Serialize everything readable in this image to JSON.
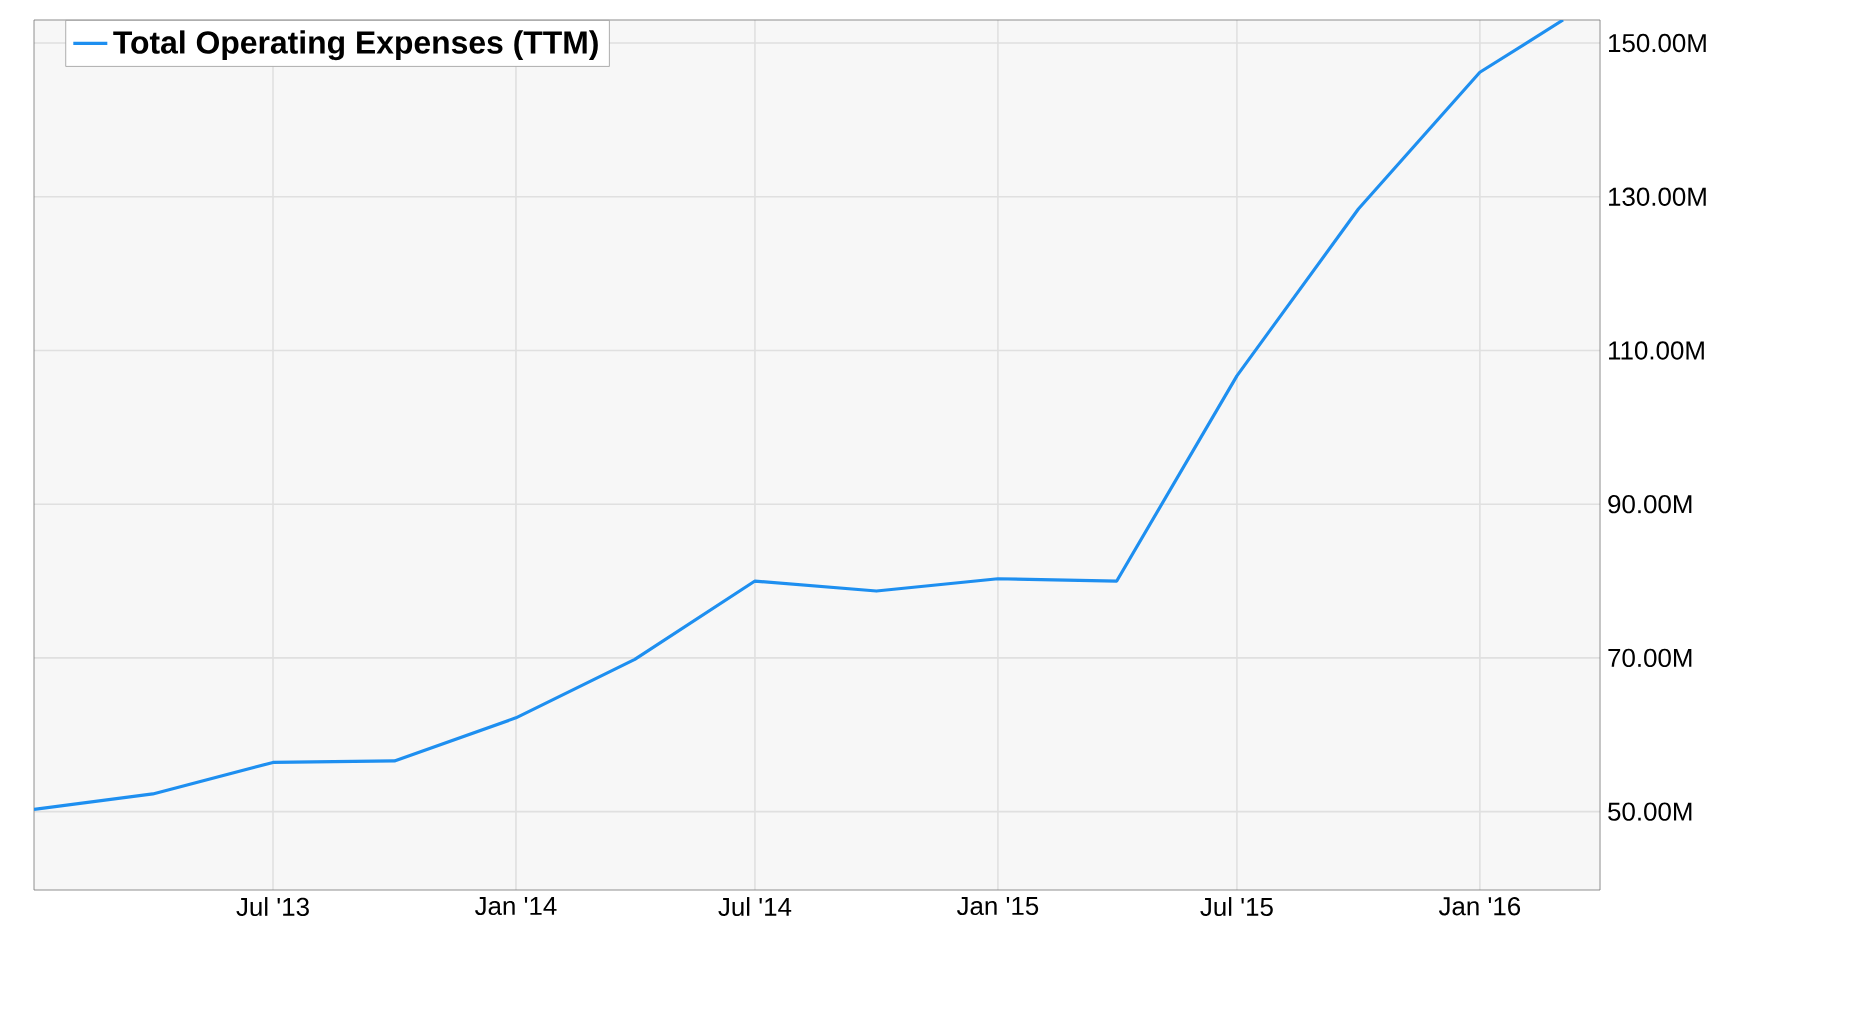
{
  "chart_data": {
    "type": "line",
    "x": [
      "2013-01-01",
      "2013-04-01",
      "2013-07-01",
      "2013-10-01",
      "2014-01-01",
      "2014-04-01",
      "2014-07-01",
      "2014-10-01",
      "2015-01-01",
      "2015-04-01",
      "2015-07-01",
      "2015-10-01",
      "2016-01-01",
      "2016-03-04"
    ],
    "series": [
      {
        "name": "Total Operating Expenses (TTM)",
        "color": "#1e8ff0",
        "values": [
          50.3,
          52.3,
          56.4,
          56.6,
          62.2,
          69.8,
          80.0,
          78.7,
          80.3,
          80.0,
          106.7,
          128.4,
          146.2,
          153.0
        ]
      }
    ],
    "xlim": [
      "2013-01-01",
      "2016-04-01"
    ],
    "xticks": [
      {
        "value": "2013-07-01",
        "label": "Jul '13"
      },
      {
        "value": "2014-01-01",
        "label": "Jan '14"
      },
      {
        "value": "2014-07-01",
        "label": "Jul '14"
      },
      {
        "value": "2015-01-01",
        "label": "Jan '15"
      },
      {
        "value": "2015-07-01",
        "label": "Jul '15"
      },
      {
        "value": "2016-01-01",
        "label": "Jan '16"
      }
    ],
    "ylim": [
      39.8,
      153.0
    ],
    "yticks": [
      {
        "value": 50,
        "label": "50.00M"
      },
      {
        "value": 70,
        "label": "70.00M"
      },
      {
        "value": 90,
        "label": "90.00M"
      },
      {
        "value": 110,
        "label": "110.00M"
      },
      {
        "value": 130,
        "label": "130.00M"
      },
      {
        "value": 150,
        "label": "150.00M"
      }
    ],
    "grid": true,
    "legend": "top left",
    "marker": "none",
    "line_style": "solid"
  }
}
